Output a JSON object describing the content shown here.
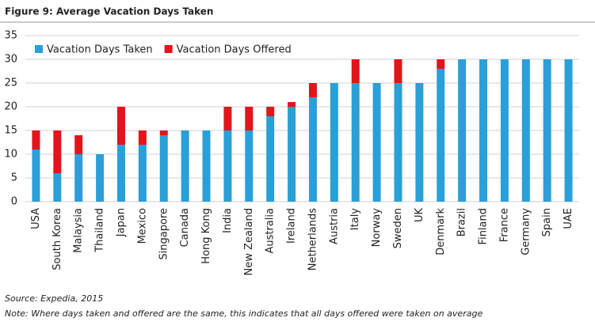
{
  "chart_data": {
    "type": "bar",
    "stacked": true,
    "title": "Figure 9: Average Vacation Days Taken",
    "categories": [
      "USA",
      "South Korea",
      "Malaysia",
      "Thailand",
      "Japan",
      "Mexico",
      "Singapore",
      "Canada",
      "Hong Kong",
      "India",
      "New Zealand",
      "Australia",
      "Ireland",
      "Netherlands",
      "Austria",
      "Italy",
      "Norway",
      "Sweden",
      "UK",
      "Denmark",
      "Brazil",
      "Finland",
      "France",
      "Germany",
      "Spain",
      "UAE"
    ],
    "series": [
      {
        "name": "Vacation Days Taken",
        "color": "#2a9fd8",
        "values": [
          11,
          6,
          10,
          10,
          12,
          12,
          14,
          15,
          15,
          15,
          15,
          18,
          20,
          22,
          25,
          25,
          25,
          25,
          25,
          28,
          30,
          30,
          30,
          30,
          30,
          30
        ]
      },
      {
        "name": "Vacation Days Offered",
        "color": "#e3141b",
        "values": [
          4,
          9,
          4,
          0,
          8,
          3,
          1,
          0,
          0,
          5,
          5,
          2,
          1,
          3,
          0,
          5,
          0,
          5,
          0,
          2,
          0,
          0,
          0,
          0,
          0,
          0
        ]
      }
    ],
    "ylim": [
      0,
      35
    ],
    "yticks": [
      0,
      5,
      10,
      15,
      20,
      25,
      30,
      35
    ],
    "grid": true,
    "legend": "top-left",
    "source": "Source: Expedia, 2015",
    "note": "Note: Where days taken and offered are the same, this indicates that all days offered were taken on average"
  }
}
